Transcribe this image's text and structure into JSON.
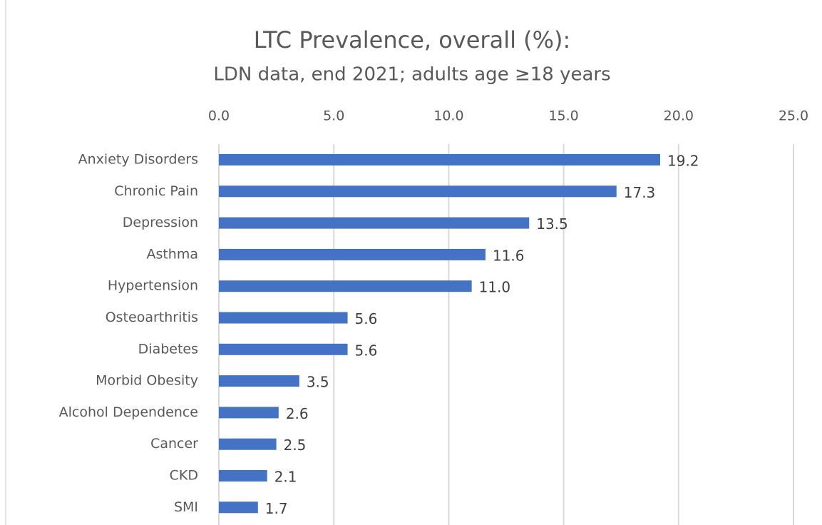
{
  "chart_data": {
    "type": "barh",
    "title": "LTC Prevalence, overall (%):",
    "subtitle": "LDN data, end 2021; adults age ≥18 years",
    "categories": [
      "Anxiety Disorders",
      "Chronic Pain",
      "Depression",
      "Asthma",
      "Hypertension",
      "Osteoarthritis",
      "Diabetes",
      "Morbid Obesity",
      "Alcohol Dependence",
      "Cancer",
      "CKD",
      "SMI"
    ],
    "values": [
      19.2,
      17.3,
      13.5,
      11.6,
      11.0,
      5.6,
      5.6,
      3.5,
      2.6,
      2.5,
      2.1,
      1.7
    ],
    "value_labels": [
      "19.2",
      "17.3",
      "13.5",
      "11.6",
      "11.0",
      "5.6",
      "5.6",
      "3.5",
      "2.6",
      "2.5",
      "2.1",
      "1.7"
    ],
    "color": "#4472c4",
    "xlim": [
      0,
      25
    ],
    "xticks": [
      {
        "value": 0,
        "label": "0.0"
      },
      {
        "value": 5,
        "label": "5.0"
      },
      {
        "value": 10,
        "label": "10.0"
      },
      {
        "value": 15,
        "label": "15.0"
      },
      {
        "value": 20,
        "label": "20.0"
      },
      {
        "value": 25,
        "label": "25.0"
      }
    ],
    "grid": true
  }
}
